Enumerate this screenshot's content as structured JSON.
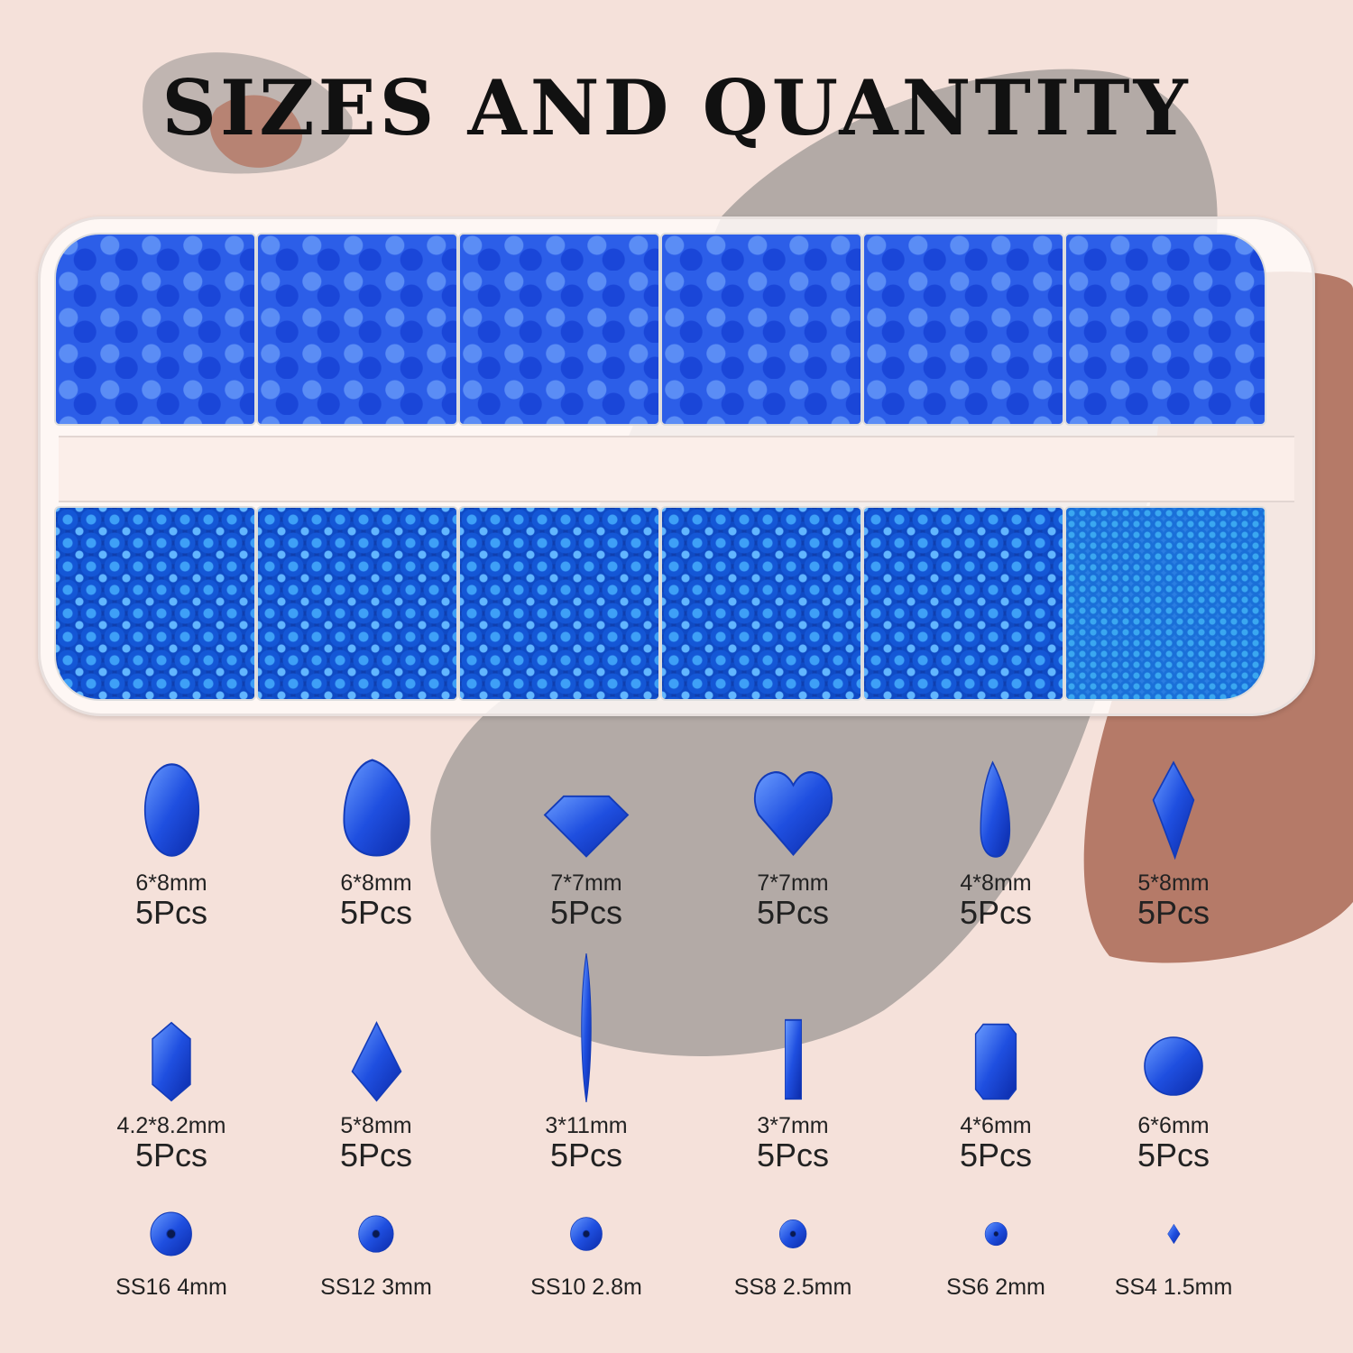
{
  "title": "SIZES AND QUANTITY",
  "colors": {
    "background": "#f5e1da",
    "gray_blob": "#b3aaa6",
    "brown_blob": "#b57a68",
    "gem_blue": "#1f4fe0"
  },
  "rows": [
    [
      {
        "shape": "oval",
        "size": "6*8mm",
        "qty": "5Pcs"
      },
      {
        "shape": "drop",
        "size": "6*8mm",
        "qty": "5Pcs"
      },
      {
        "shape": "diamond",
        "size": "7*7mm",
        "qty": "5Pcs"
      },
      {
        "shape": "heart",
        "size": "7*7mm",
        "qty": "5Pcs"
      },
      {
        "shape": "teardrop",
        "size": "4*8mm",
        "qty": "5Pcs"
      },
      {
        "shape": "kite",
        "size": "5*8mm",
        "qty": "5Pcs"
      }
    ],
    [
      {
        "shape": "hexagon",
        "size": "4.2*8.2mm",
        "qty": "5Pcs"
      },
      {
        "shape": "rhombus",
        "size": "5*8mm",
        "qty": "5Pcs"
      },
      {
        "shape": "navette",
        "size": "3*11mm",
        "qty": "5Pcs"
      },
      {
        "shape": "baguette",
        "size": "3*7mm",
        "qty": "5Pcs"
      },
      {
        "shape": "octagon",
        "size": "4*6mm",
        "qty": "5Pcs"
      },
      {
        "shape": "round",
        "size": "6*6mm",
        "qty": "5Pcs"
      }
    ]
  ],
  "round_sizes": [
    {
      "shape": "flatback",
      "label": "SS16 4mm"
    },
    {
      "shape": "flatback",
      "label": "SS12 3mm"
    },
    {
      "shape": "flatback",
      "label": "SS10 2.8m"
    },
    {
      "shape": "flatback",
      "label": "SS8 2.5mm"
    },
    {
      "shape": "flatback",
      "label": "SS6 2mm"
    },
    {
      "shape": "chaton",
      "label": "SS4 1.5mm"
    }
  ]
}
